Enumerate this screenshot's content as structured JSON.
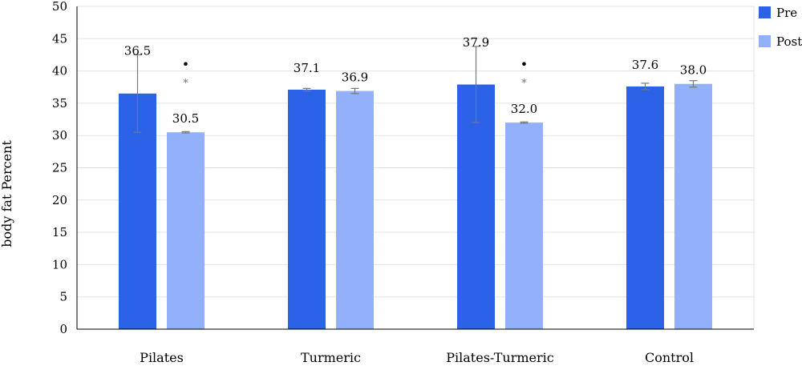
{
  "chart_data": {
    "type": "bar",
    "ylabel": "body fat Percent",
    "xlabel": "",
    "ylim": [
      0,
      50
    ],
    "yticks": [
      0,
      5,
      10,
      15,
      20,
      25,
      30,
      35,
      40,
      45,
      50
    ],
    "grid": true,
    "legend_position": "top-right",
    "categories": [
      "Pilates",
      "Turmeric",
      "Pilates-Turmeric",
      "Control"
    ],
    "series": [
      {
        "name": "Pre",
        "color": "#2b62e8",
        "values": [
          36.5,
          37.1,
          37.9,
          37.6
        ],
        "labels": [
          "36.5",
          "37.1",
          "37.9",
          "37.6"
        ],
        "error": [
          6.0,
          0.2,
          5.9,
          0.5
        ]
      },
      {
        "name": "Post",
        "color": "#93b1fb",
        "values": [
          30.5,
          36.9,
          32.0,
          38.0
        ],
        "labels": [
          "30.5",
          "36.9",
          "32.0",
          "38.0"
        ],
        "error": [
          0.1,
          0.4,
          0.1,
          0.5
        ]
      }
    ],
    "annotations": [
      {
        "category": "Pilates",
        "series": "Post",
        "dot": "•",
        "star": "*"
      },
      {
        "category": "Pilates-Turmeric",
        "series": "Post",
        "dot": "•",
        "star": "*"
      }
    ]
  }
}
